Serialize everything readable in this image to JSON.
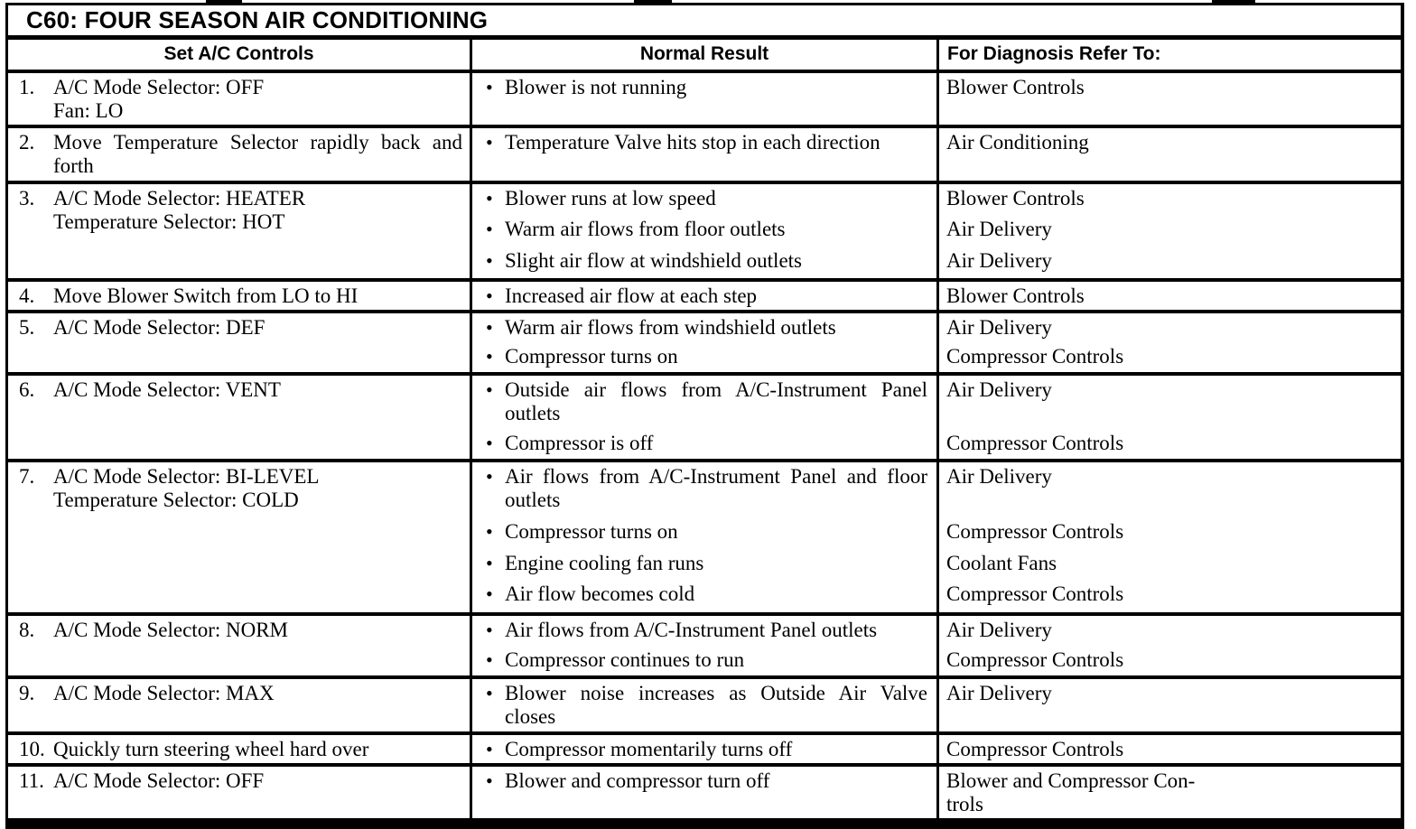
{
  "title": "C60: FOUR SEASON AIR CONDITIONING",
  "bullet": "•",
  "columns": {
    "controls": "Set A/C Controls",
    "result": "Normal Result",
    "diagnosis": "For Diagnosis Refer To:"
  },
  "rows": [
    {
      "num": "1.",
      "control_lines": [
        "A/C Mode Selector: OFF",
        "Fan: LO"
      ],
      "checks": [
        {
          "result": "Blower is not running",
          "ref": "Blower Controls"
        }
      ]
    },
    {
      "num": "2.",
      "control_lines": [
        "Move Temperature Selector rapidly back and\nforth"
      ],
      "control_justify": true,
      "checks": [
        {
          "result": "Temperature Valve hits stop in each direction",
          "ref": "Air Conditioning"
        }
      ]
    },
    {
      "num": "3.",
      "control_lines": [
        "A/C Mode Selector: HEATER",
        "Temperature Selector: HOT"
      ],
      "checks": [
        {
          "result": "Blower runs at low speed",
          "ref": "Blower Controls"
        },
        {
          "result": "Warm air flows from floor outlets",
          "ref": "Air Delivery"
        },
        {
          "result": "Slight air flow at windshield outlets",
          "ref": "Air Delivery"
        }
      ]
    },
    {
      "num": "4.",
      "control_lines": [
        "Move Blower Switch from LO to HI"
      ],
      "checks": [
        {
          "result": "Increased air flow at each step",
          "ref": "Blower Controls"
        }
      ]
    },
    {
      "num": "5.",
      "control_lines": [
        "A/C Mode Selector: DEF"
      ],
      "checks": [
        {
          "result": "Warm air flows from windshield outlets",
          "ref": "Air Delivery"
        },
        {
          "result": "Compressor turns on",
          "ref": "Compressor Controls"
        }
      ]
    },
    {
      "num": "6.",
      "control_lines": [
        "A/C Mode Selector: VENT"
      ],
      "checks": [
        {
          "result": "Outside air flows from A/C-Instrument Panel\noutlets",
          "justify": true,
          "ref": "Air Delivery"
        },
        {
          "result": "Compressor is off",
          "ref": "Compressor Controls"
        }
      ]
    },
    {
      "num": "7.",
      "control_lines": [
        "A/C Mode Selector: BI-LEVEL",
        "Temperature Selector: COLD"
      ],
      "checks": [
        {
          "result": "Air flows from A/C-Instrument Panel and floor\noutlets",
          "justify": true,
          "ref": "Air Delivery"
        },
        {
          "result": "Compressor turns on",
          "ref": "Compressor Controls"
        },
        {
          "result": "Engine cooling fan runs",
          "ref": "Coolant Fans"
        },
        {
          "result": "Air flow becomes cold",
          "ref": "Compressor Controls"
        }
      ]
    },
    {
      "num": "8.",
      "control_lines": [
        "A/C Mode Selector: NORM"
      ],
      "checks": [
        {
          "result": "Air flows from A/C-Instrument Panel outlets",
          "ref": "Air Delivery"
        },
        {
          "result": "Compressor continues to run",
          "ref": "Compressor Controls"
        }
      ]
    },
    {
      "num": "9.",
      "control_lines": [
        "A/C Mode Selector: MAX"
      ],
      "checks": [
        {
          "result": "Blower noise increases as Outside Air Valve\ncloses",
          "justify": true,
          "ref": "Air Delivery"
        }
      ]
    },
    {
      "num": "10.",
      "control_lines": [
        "Quickly turn steering wheel hard over"
      ],
      "checks": [
        {
          "result": "Compressor momentarily turns off",
          "ref": "Compressor Controls"
        }
      ]
    },
    {
      "num": "11.",
      "control_lines": [
        "A/C Mode Selector: OFF"
      ],
      "checks": [
        {
          "result": "Blower and compressor turn off",
          "ref": "Blower and Compressor Con-\ntrols"
        }
      ]
    }
  ]
}
